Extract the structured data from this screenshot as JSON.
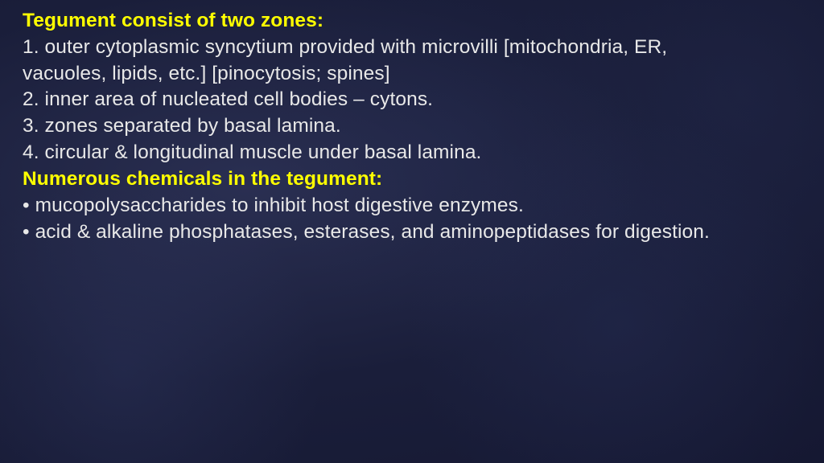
{
  "colors": {
    "background_dark": "#1a1e3a",
    "background_mid": "#2a2f52",
    "heading": "#ffff00",
    "body_text": "#e8e8e8"
  },
  "typography": {
    "font_family": "Verdana",
    "body_fontsize_pt": 18,
    "heading_fontweight": 700,
    "body_fontweight": 400,
    "line_height": 1.34
  },
  "slide": {
    "heading1": "Tegument consist of two zones:",
    "lines1": [
      "1. outer cytoplasmic syncytium provided with microvilli [mitochondria, ER,",
      "vacuoles, lipids, etc.] [pinocytosis; spines]",
      "2. inner area of nucleated cell bodies – cytons.",
      "3. zones separated by basal lamina.",
      "4. circular & longitudinal muscle under basal lamina."
    ],
    "heading2": "Numerous chemicals in the tegument:",
    "lines2": [
      "• mucopolysaccharides to inhibit host digestive enzymes.",
      "• acid & alkaline phosphatases, esterases, and aminopeptidases for digestion."
    ]
  }
}
